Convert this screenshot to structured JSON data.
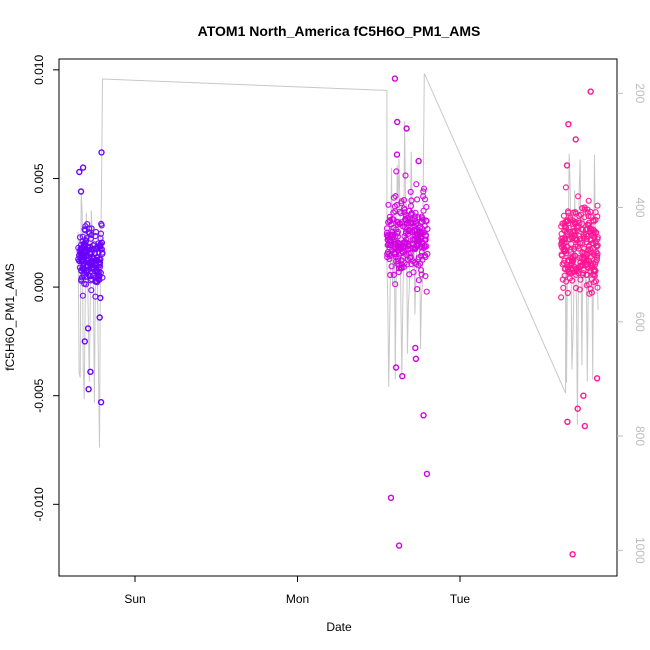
{
  "chart_data": {
    "type": "scatter",
    "title": "ATOM1 North_America fC5H6O_PM1_AMS",
    "xlabel": "Date",
    "ylabel": "fC5H6O_PM1_AMS",
    "x_ticks": [
      "Sun",
      "Mon",
      "Tue"
    ],
    "y_ticks": [
      -0.01,
      -0.005,
      0.0,
      0.005,
      0.01
    ],
    "y_tick_labels": [
      "-0.010",
      "-0.005",
      "0.000",
      "0.005",
      "0.010"
    ],
    "ylim": [
      -0.0133,
      0.0105
    ],
    "secondary_y": {
      "label": "",
      "ticks": [
        200,
        400,
        600,
        800,
        1000
      ],
      "ylim": [
        1045,
        140
      ],
      "reversed": true,
      "color": "#bdbdbd"
    },
    "grid": false,
    "legend": "none",
    "series": [
      {
        "x_range_days": [
          -0.35,
          -0.2
        ],
        "y_center": 0.0013,
        "y_spread": 0.0012,
        "color": "#6a00ff",
        "n_points": 180,
        "outliers": [
          0.0062,
          0.0055,
          0.0053,
          0.0044,
          -0.0019,
          -0.0025,
          -0.0039,
          -0.0047,
          -0.0053,
          -0.0014,
          -0.0005
        ]
      },
      {
        "x_range_days": [
          1.55,
          1.8
        ],
        "y_center": 0.0023,
        "y_spread": 0.0016,
        "color": "#d100e0",
        "n_points": 260,
        "outliers": [
          0.0096,
          0.0076,
          0.0073,
          0.0061,
          0.0058,
          -0.0028,
          -0.0033,
          -0.0037,
          -0.0041,
          -0.0059,
          -0.0086,
          -0.0097,
          -0.0119
        ]
      },
      {
        "x_range_days": [
          2.62,
          2.85
        ],
        "y_center": 0.0018,
        "y_spread": 0.0017,
        "color": "#ff1493",
        "n_points": 260,
        "outliers": [
          0.009,
          0.0075,
          0.0068,
          0.0056,
          -0.0042,
          -0.005,
          -0.0056,
          -0.0062,
          -0.0064,
          -0.0123
        ]
      }
    ],
    "pressure_line": {
      "color": "#c8c8c8",
      "x_anchor_days": [
        -0.2,
        1.55,
        1.78,
        2.65
      ],
      "y_anchor_secondary": [
        175,
        195,
        165,
        725
      ]
    }
  }
}
